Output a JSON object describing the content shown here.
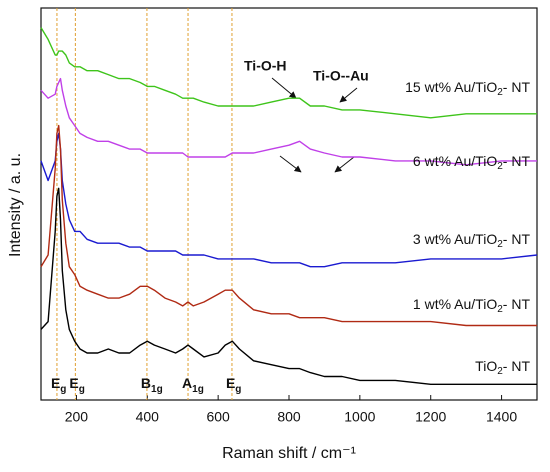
{
  "chart_data": {
    "type": "line",
    "xlabel": "Raman shift / cm⁻¹",
    "ylabel": "Intensity / a. u.",
    "xlim": [
      100,
      1500
    ],
    "xticks": [
      200,
      400,
      600,
      800,
      1000,
      1200,
      1400
    ],
    "ylim": [
      0,
      100
    ],
    "x": [
      100,
      120,
      140,
      145,
      150,
      155,
      160,
      170,
      180,
      195,
      210,
      230,
      260,
      290,
      320,
      350,
      380,
      400,
      420,
      450,
      480,
      500,
      515,
      530,
      560,
      600,
      620,
      640,
      660,
      700,
      750,
      800,
      830,
      860,
      900,
      950,
      1000,
      1100,
      1200,
      1300,
      1400,
      1500
    ],
    "series": [
      {
        "name": "15 wt% Au/TiO2- NT",
        "color": "#3ec41a",
        "values": [
          95,
          92,
          88,
          88,
          89,
          89,
          89,
          88,
          86,
          85,
          85,
          84,
          84,
          83,
          82,
          82,
          81,
          80,
          80,
          79,
          78,
          77,
          77,
          77,
          76,
          75,
          75,
          75,
          75,
          75,
          76,
          77,
          77,
          75,
          75,
          74,
          74,
          73,
          72,
          73,
          73,
          73
        ]
      },
      {
        "name": "6 wt% Au/TiO2- NT",
        "color": "#c040e8",
        "values": [
          79,
          77,
          78,
          80,
          81,
          82,
          79,
          75,
          72,
          70,
          68,
          67,
          66,
          66,
          65,
          64,
          64,
          63,
          63,
          63,
          63,
          63,
          62,
          62,
          62,
          62,
          62,
          63,
          63,
          63,
          64,
          65,
          66,
          64,
          63,
          62,
          62,
          61,
          61,
          60,
          61,
          61
        ]
      },
      {
        "name": "3 wt% Au/TiO2- NT",
        "color": "#1a1ad0",
        "values": [
          61,
          56,
          61,
          66,
          68,
          64,
          56,
          50,
          46,
          43,
          43,
          41,
          40,
          40,
          40,
          39,
          39,
          38,
          38,
          38,
          38,
          37,
          37,
          37,
          37,
          36,
          36,
          36,
          36,
          36,
          35,
          35,
          35,
          34,
          34,
          35,
          35,
          35,
          36,
          36,
          36,
          37
        ]
      },
      {
        "name": "1 wt% Au/TiO2- NT",
        "color": "#b02a14",
        "values": [
          34,
          37,
          59,
          68,
          70,
          64,
          51,
          40,
          34,
          32,
          29,
          28,
          27,
          26,
          26,
          27,
          29,
          29,
          28,
          26,
          25,
          24,
          25,
          24,
          25,
          27,
          28,
          28,
          26,
          23,
          22,
          22,
          21,
          21,
          21,
          20,
          20,
          20,
          20,
          19,
          19,
          19
        ]
      },
      {
        "name": "TiO2- NT",
        "color": "#000000",
        "values": [
          18,
          20,
          43,
          52,
          54,
          46,
          33,
          23,
          18,
          15,
          13,
          12,
          12,
          13,
          12,
          12,
          14,
          15,
          14,
          13,
          12,
          13,
          14,
          13,
          11,
          12,
          14,
          15,
          13,
          10,
          9,
          8,
          8,
          7,
          6,
          6,
          5,
          5,
          4,
          4,
          4,
          4
        ]
      }
    ],
    "annotations": [
      "Ti-O-H",
      "Ti-O--Au"
    ],
    "modes": [
      {
        "x": 145,
        "symbol": "E",
        "sub": "g"
      },
      {
        "x": 197,
        "symbol": "E",
        "sub": "g"
      },
      {
        "x": 399,
        "symbol": "B",
        "sub": "1g"
      },
      {
        "x": 515,
        "symbol": "A",
        "sub": "1g"
      },
      {
        "x": 639,
        "symbol": "E",
        "sub": "g"
      }
    ],
    "mode_color": "#e0a030"
  }
}
